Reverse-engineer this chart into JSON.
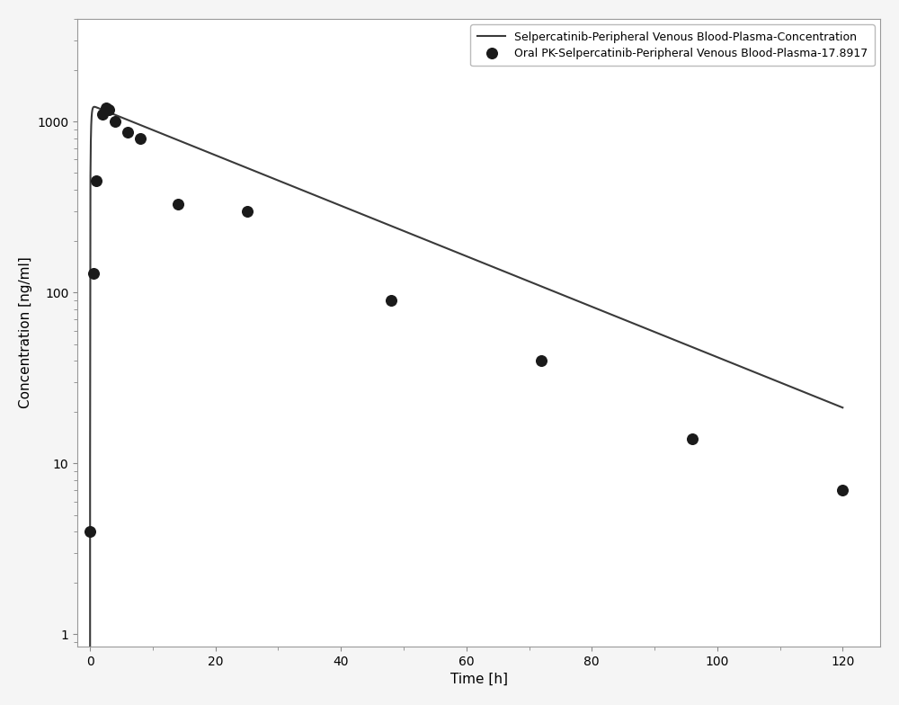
{
  "line_label": "Selpercatinib-Peripheral Venous Blood-Plasma-Concentration",
  "scatter_label": "Oral PK-Selpercatinib-Peripheral Venous Blood-Plasma-17.8917",
  "xlabel": "Time [h]",
  "ylabel": "Concentration [ng/ml]",
  "background_color": "#f5f5f5",
  "plot_bg_color": "#ffffff",
  "scatter_x": [
    0.0,
    0.5,
    1.0,
    2.0,
    2.5,
    3.0,
    4.0,
    6.0,
    8.0,
    14.0,
    25.0,
    48.0,
    72.0,
    96.0,
    120.0
  ],
  "scatter_y": [
    4.0,
    130.0,
    450.0,
    1100.0,
    1200.0,
    1180.0,
    1000.0,
    870.0,
    800.0,
    330.0,
    300.0,
    90.0,
    40.0,
    14.0,
    7.0
  ],
  "line_ka": 8.0,
  "line_ke": 0.034,
  "line_dose_factor": 1250.0,
  "line_t_end": 120.0,
  "xlim_left": -2,
  "xlim_right": 126,
  "ylim_bottom": 0.85,
  "ylim_top": 4000,
  "xticks": [
    0,
    20,
    40,
    60,
    80,
    100,
    120
  ],
  "yticks_major": [
    1,
    10,
    100,
    1000
  ],
  "legend_loc": "upper right",
  "line_color": "#3a3a3a",
  "scatter_color": "#1a1a1a",
  "scatter_size": 70,
  "line_width": 1.5,
  "font_size": 11,
  "tick_font_size": 10,
  "legend_fontsize": 9,
  "spine_color": "#999999"
}
